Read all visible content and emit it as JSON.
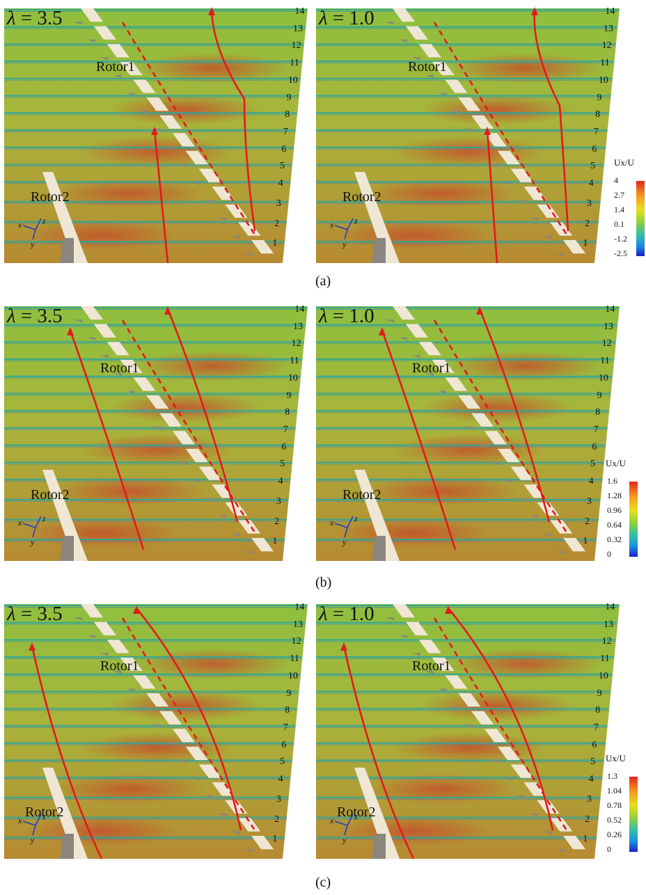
{
  "figure": {
    "panels": [
      {
        "caption": "(a)",
        "colorbar": {
          "title": "Ux/U",
          "ticks": [
            "4",
            "2.7",
            "1.4",
            "0.1",
            "-1.2",
            "-2.5"
          ]
        },
        "subplots": [
          {
            "lambda_symbol": "λ",
            "lambda_value": "= 3.5",
            "rotor1": "Rotor1",
            "rotor2": "Rotor2"
          },
          {
            "lambda_symbol": "λ",
            "lambda_value": "= 1.0",
            "rotor1": "Rotor1",
            "rotor2": "Rotor2"
          }
        ]
      },
      {
        "caption": "(b)",
        "colorbar": {
          "title": "Ux/U",
          "ticks": [
            "1.6",
            "1.28",
            "0.96",
            "0.64",
            "0.32",
            "0"
          ]
        },
        "subplots": [
          {
            "lambda_symbol": "λ",
            "lambda_value": "= 3.5",
            "rotor1": "Rotor1",
            "rotor2": "Rotor2"
          },
          {
            "lambda_symbol": "λ",
            "lambda_value": "= 1.0",
            "rotor1": "Rotor1",
            "rotor2": "Rotor2"
          }
        ]
      },
      {
        "caption": "(c)",
        "colorbar": {
          "title": "Ux/U",
          "ticks": [
            "1.3",
            "1.04",
            "0.78",
            "0.52",
            "0.26",
            "0"
          ]
        },
        "subplots": [
          {
            "lambda_symbol": "λ",
            "lambda_value": "= 3.5",
            "rotor1": "Rotor1",
            "rotor2": "Rotor2"
          },
          {
            "lambda_symbol": "λ",
            "lambda_value": "= 1.0",
            "rotor1": "Rotor1",
            "rotor2": "Rotor2"
          }
        ]
      }
    ],
    "slice_numbers": [
      "14",
      "13",
      "12",
      "11",
      "10",
      "9",
      "8",
      "7",
      "6",
      "5",
      "4",
      "3",
      "2",
      "1"
    ],
    "axes": {
      "x": "x",
      "y": "y",
      "z": "z"
    },
    "colors": {
      "wake_line": "#e31a1c",
      "field_mid": "#a9b63a",
      "field_hot": "#c8702a",
      "field_low": "#1b86d6",
      "blade": "#efe6d4",
      "blade_shadow": "#8a857e"
    }
  }
}
